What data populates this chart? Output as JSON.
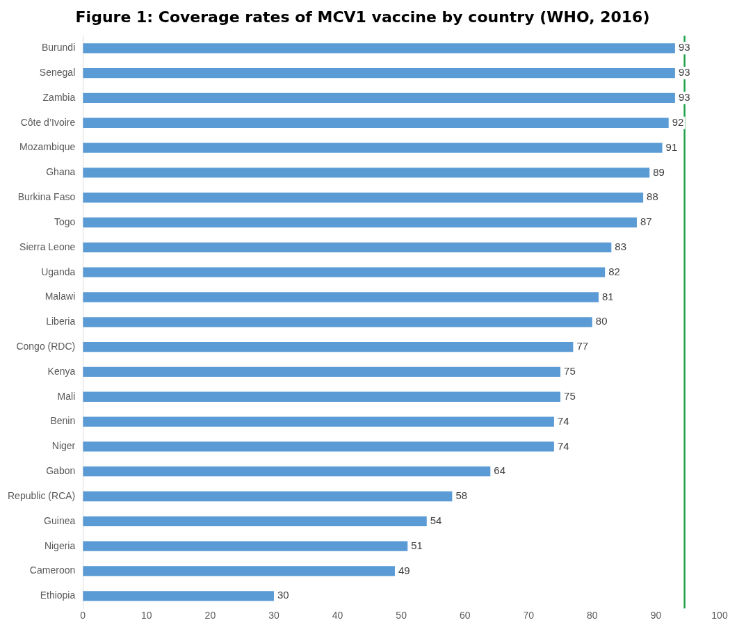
{
  "chart_data": {
    "type": "bar",
    "orientation": "horizontal",
    "title": "Figure 1: Coverage rates of MCV1 vaccine by country (WHO, 2016)",
    "categories": [
      "Burundi",
      "Senegal",
      "Zambia",
      "Côte d’Ivoire",
      "Mozambique",
      "Ghana",
      "Burkina Faso",
      "Togo",
      "Sierra Leone",
      "Uganda",
      "Malawi",
      "Liberia",
      "Congo (RDC)",
      "Kenya",
      "Mali",
      "Benin",
      "Niger",
      "Gabon",
      "Republic (RCA)",
      "Guinea",
      "Nigeria",
      "Cameroon",
      "Ethiopia"
    ],
    "values": [
      93,
      93,
      93,
      92,
      91,
      89,
      88,
      87,
      83,
      82,
      81,
      80,
      77,
      75,
      75,
      74,
      74,
      64,
      58,
      54,
      51,
      49,
      30
    ],
    "color": "#5b9bd5",
    "xlim": [
      0,
      100
    ],
    "xticks": [
      0,
      10,
      20,
      30,
      40,
      50,
      60,
      70,
      80,
      90,
      100
    ],
    "grid": false,
    "data_labels": true,
    "ref_lines": [
      {
        "axis": "x",
        "value": 94.5,
        "color": "#1fa34a"
      }
    ]
  }
}
